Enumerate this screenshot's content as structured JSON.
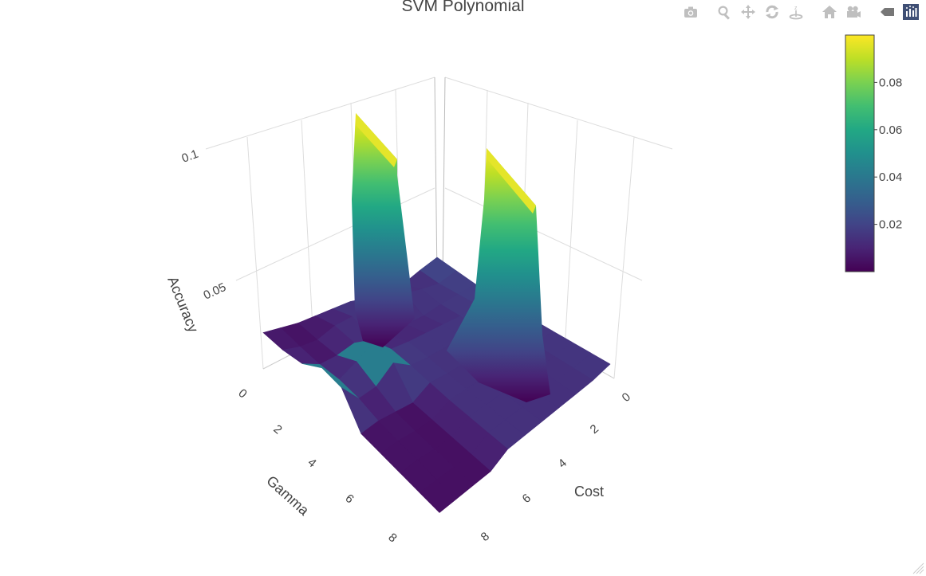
{
  "chart_data": {
    "type": "surface",
    "title": "SVM Polynomial",
    "x_axis": {
      "label": "Cost",
      "ticks": [
        "0",
        "2",
        "4",
        "6",
        "8"
      ]
    },
    "y_axis": {
      "label": "Gamma",
      "ticks": [
        "0",
        "2",
        "4",
        "6",
        "8"
      ]
    },
    "z_axis": {
      "label": "Accuracy",
      "ticks": [
        "0.05",
        "0.1"
      ]
    },
    "colorscale": "Viridis",
    "colorbar": {
      "ticks": [
        "0.02",
        "0.04",
        "0.06",
        "0.08"
      ],
      "range": [
        0.0,
        0.1
      ]
    },
    "colors": {
      "low": "#440154",
      "mid": "#21908d",
      "high": "#fde725",
      "grid": "#dddddd",
      "text": "#444444"
    },
    "z": [
      [
        0.018,
        0.016,
        0.014,
        0.013,
        0.012,
        0.012,
        0.012,
        0.012,
        0.012,
        0.012
      ],
      [
        0.012,
        0.011,
        0.012,
        0.013,
        0.012,
        0.011,
        0.01,
        0.01,
        0.01,
        0.01
      ],
      [
        0.005,
        0.012,
        0.01,
        0.011,
        0.011,
        0.01,
        0.01,
        0.01,
        0.01,
        0.01
      ],
      [
        0.007,
        0.014,
        0.007,
        0.011,
        0.011,
        0.01,
        0.01,
        0.01,
        0.009,
        0.01
      ],
      [
        0.004,
        0.013,
        0.006,
        0.011,
        0.011,
        0.01,
        0.01,
        0.01,
        0.01,
        0.01
      ],
      [
        0.006,
        0.02,
        0.004,
        0.011,
        0.011,
        0.01,
        0.01,
        0.01,
        0.01,
        0.01
      ],
      [
        0.005,
        0.012,
        0.006,
        0.012,
        0.012,
        0.011,
        0.01,
        0.01,
        0.01,
        0.01
      ],
      [
        0.004,
        0.01,
        0.01,
        0.1,
        0.022,
        0.003,
        0.003,
        0.003,
        0.003,
        0.003
      ],
      [
        0.003,
        0.004,
        0.006,
        0.016,
        0.01,
        0.004,
        0.003,
        0.003,
        0.003,
        0.003
      ],
      [
        0.004,
        0.004,
        0.005,
        0.008,
        0.008,
        0.005,
        0.004,
        0.004,
        0.003,
        0.003
      ],
      [
        0.005,
        0.007,
        0.012,
        0.1,
        0.026,
        0.003,
        0.003,
        0.003,
        0.003,
        0.003
      ]
    ]
  },
  "modebar": {
    "buttons": [
      "camera-icon",
      "zoom-icon",
      "pan-icon",
      "orbit-icon",
      "turntable-icon",
      "home-icon",
      "camera-view-icon",
      "tag-icon",
      "plotly-logo-icon"
    ]
  }
}
